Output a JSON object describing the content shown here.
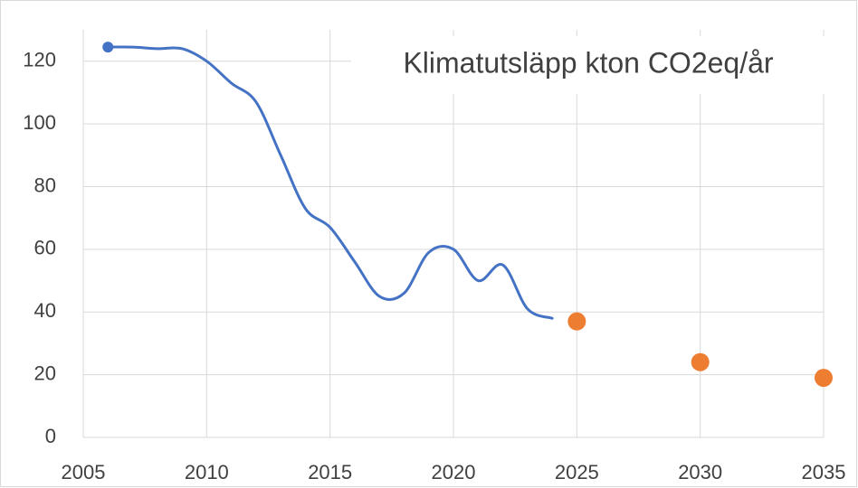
{
  "chart_data": {
    "type": "line",
    "title": "Klimatutsläpp kton CO2eq/år",
    "series": [
      {
        "type": "line",
        "color": "#4472c4",
        "smooth": true,
        "start_marker": true,
        "x": [
          2006,
          2007,
          2008,
          2009,
          2010,
          2011,
          2012,
          2013,
          2014,
          2015,
          2016,
          2017,
          2018,
          2019,
          2020,
          2021,
          2022,
          2023,
          2024
        ],
        "values": [
          124.5,
          124.5,
          124,
          124,
          120,
          113,
          107,
          90,
          73,
          67,
          56,
          45,
          46,
          59,
          60,
          50,
          55,
          41,
          38
        ]
      },
      {
        "type": "scatter",
        "color": "#ed7d31",
        "x": [
          2025,
          2030,
          2035
        ],
        "values": [
          37,
          24,
          19
        ]
      }
    ],
    "xlim": [
      2005,
      2035
    ],
    "xticks": [
      2005,
      2010,
      2015,
      2020,
      2025,
      2030,
      2035
    ],
    "ylim": [
      0,
      130
    ],
    "yticks": [
      0,
      20,
      40,
      60,
      80,
      100,
      120
    ],
    "grid": true
  }
}
